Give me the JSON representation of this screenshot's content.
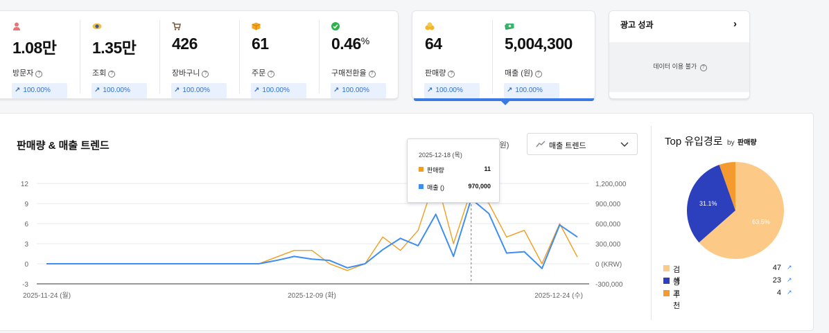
{
  "kpis": [
    {
      "icon": "person-icon",
      "value": "1.08만",
      "label": "방문자",
      "change": "100.00%"
    },
    {
      "icon": "eye-icon",
      "value": "1.35만",
      "label": "조회",
      "change": "100.00%"
    },
    {
      "icon": "cart-icon",
      "value": "426",
      "label": "장바구니",
      "change": "100.00%"
    },
    {
      "icon": "box-icon",
      "value": "61",
      "label": "주문",
      "change": "100.00%"
    },
    {
      "icon": "check-circle-icon",
      "value": "0.46",
      "unit": "%",
      "label": "구매전환율",
      "change": "100.00%"
    },
    {
      "icon": "coins-icon",
      "value": "64",
      "label": "판매량",
      "change": "100.00%"
    },
    {
      "icon": "money-icon",
      "value": "5,004,300",
      "label": "매출 (원)",
      "change": "100.00%"
    }
  ],
  "ad_card": {
    "title": "광고 성과",
    "empty_text": "데이터 이용 불가"
  },
  "chart_header": {
    "title": "판매량 & 매출 트렌드",
    "unit_hint": "(원)",
    "dropdown_value": "매출 트렌드"
  },
  "tooltip": {
    "date": "2025-12-18 (목)",
    "rows": [
      {
        "name": "판매량",
        "value": "11",
        "color": "#f39c1f"
      },
      {
        "name": "매출 ()",
        "value": "970,000",
        "color": "#3d8ef0"
      }
    ]
  },
  "chart_data": {
    "type": "line",
    "x": [
      "2025-11-24",
      "2025-11-25",
      "2025-11-26",
      "2025-11-27",
      "2025-11-28",
      "2025-11-29",
      "2025-11-30",
      "2025-12-01",
      "2025-12-02",
      "2025-12-03",
      "2025-12-04",
      "2025-12-05",
      "2025-12-06",
      "2025-12-07",
      "2025-12-08",
      "2025-12-09",
      "2025-12-10",
      "2025-12-11",
      "2025-12-12",
      "2025-12-13",
      "2025-12-14",
      "2025-12-15",
      "2025-12-16",
      "2025-12-17",
      "2025-12-18",
      "2025-12-19",
      "2025-12-20",
      "2025-12-21",
      "2025-12-22",
      "2025-12-23",
      "2025-12-24"
    ],
    "x_tick_labels": [
      "2025-11-24 (월)",
      "2025-12-09 (화)",
      "2025-12-24 (수)"
    ],
    "series": [
      {
        "name": "판매량",
        "axis": "left",
        "color": "#f39c1f",
        "values": [
          0,
          0,
          0,
          0,
          0,
          0,
          0,
          0,
          0,
          0,
          0,
          0,
          0,
          1,
          2,
          2,
          0,
          -1,
          0,
          4,
          2,
          5,
          13,
          3,
          11,
          9,
          4,
          5,
          0,
          6,
          1
        ]
      },
      {
        "name": "매출 ()",
        "axis": "right",
        "color": "#3d8ef0",
        "values": [
          0,
          0,
          0,
          0,
          0,
          0,
          0,
          0,
          0,
          0,
          0,
          0,
          0,
          50000,
          110000,
          70000,
          50000,
          -60000,
          0,
          210000,
          380000,
          270000,
          740000,
          110000,
          970000,
          750000,
          160000,
          180000,
          -70000,
          580000,
          400000
        ]
      }
    ],
    "y_left": {
      "ticks": [
        12,
        9,
        6,
        3,
        0,
        -3
      ],
      "ylim": [
        -3,
        12
      ]
    },
    "y_right": {
      "ticks": [
        "1,200,000",
        "900,000",
        "600,000",
        "300,000",
        "0 (KRW)",
        "-300,000"
      ],
      "ylim": [
        -300000,
        1200000
      ]
    },
    "grid": true,
    "hover_index": 24
  },
  "source_panel": {
    "title": "Top 유입경로",
    "by_label": "by",
    "by_metric": "판매량",
    "pie": {
      "type": "pie",
      "slices": [
        {
          "name": "검색",
          "value": 63.5,
          "count": "47",
          "color": "#fdc987",
          "label": "63.5%"
        },
        {
          "name": "광고",
          "value": 31.1,
          "count": "23",
          "color": "#2c3fbd",
          "label": "31.1%"
        },
        {
          "name": "추천",
          "value": 5.4,
          "count": "4",
          "color": "#f59a2e",
          "label": ""
        }
      ]
    }
  }
}
